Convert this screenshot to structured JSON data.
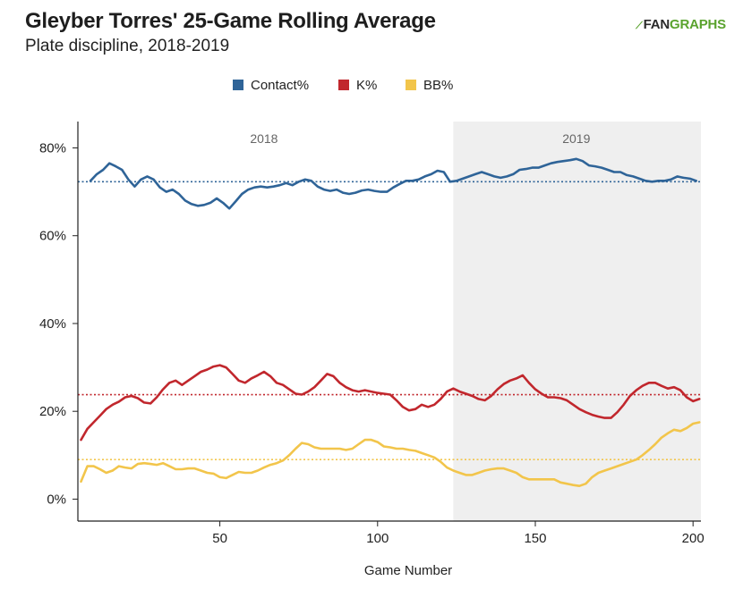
{
  "chart_data": {
    "type": "line",
    "title": "Gleyber Torres' 25-Game Rolling Average",
    "subtitle": "Plate discipline, 2018-2019",
    "logo": {
      "fan": "FAN",
      "graphs": "GRAPHS"
    },
    "xlabel": "Game Number",
    "ylabel": "",
    "xlim": [
      5,
      202.5
    ],
    "ylim": [
      -5,
      86
    ],
    "x_ticks": [
      50,
      100,
      150,
      200
    ],
    "x_tick_labels": [
      "50",
      "100",
      "150",
      "200"
    ],
    "y_ticks": [
      0,
      20,
      40,
      60,
      80
    ],
    "y_tick_labels": [
      "0%",
      "20%",
      "40%",
      "60%",
      "80%"
    ],
    "shaded_region": {
      "x_start": 124,
      "x_end": 202.5,
      "color": "#efefef"
    },
    "season_labels": [
      {
        "label": "2018",
        "x": 64
      },
      {
        "label": "2019",
        "x": 163
      }
    ],
    "legend_position": "top-center",
    "series": [
      {
        "name": "Contact%",
        "color": "#2f6498",
        "average": 72.3,
        "points": [
          [
            9,
            72.5
          ],
          [
            11,
            74
          ],
          [
            13,
            75
          ],
          [
            15,
            76.5
          ],
          [
            17,
            75.8
          ],
          [
            19,
            75
          ],
          [
            21,
            72.8
          ],
          [
            23,
            71.2
          ],
          [
            25,
            72.8
          ],
          [
            27,
            73.5
          ],
          [
            29,
            72.8
          ],
          [
            31,
            71
          ],
          [
            33,
            70
          ],
          [
            35,
            70.5
          ],
          [
            37,
            69.5
          ],
          [
            39,
            68
          ],
          [
            41,
            67.2
          ],
          [
            43,
            66.8
          ],
          [
            45,
            67
          ],
          [
            47,
            67.5
          ],
          [
            49,
            68.5
          ],
          [
            51,
            67.5
          ],
          [
            53,
            66.2
          ],
          [
            55,
            67.8
          ],
          [
            57,
            69.5
          ],
          [
            59,
            70.5
          ],
          [
            61,
            71
          ],
          [
            63,
            71.2
          ],
          [
            65,
            71
          ],
          [
            67,
            71.2
          ],
          [
            69,
            71.5
          ],
          [
            71,
            72
          ],
          [
            73,
            71.5
          ],
          [
            75,
            72.3
          ],
          [
            77,
            72.8
          ],
          [
            79,
            72.5
          ],
          [
            81,
            71.2
          ],
          [
            83,
            70.5
          ],
          [
            85,
            70.2
          ],
          [
            87,
            70.5
          ],
          [
            89,
            69.8
          ],
          [
            91,
            69.5
          ],
          [
            93,
            69.8
          ],
          [
            95,
            70.3
          ],
          [
            97,
            70.5
          ],
          [
            99,
            70.2
          ],
          [
            101,
            70
          ],
          [
            103,
            70
          ],
          [
            105,
            71
          ],
          [
            107,
            71.8
          ],
          [
            109,
            72.5
          ],
          [
            111,
            72.5
          ],
          [
            113,
            72.8
          ],
          [
            115,
            73.5
          ],
          [
            117,
            74
          ],
          [
            119,
            74.8
          ],
          [
            121,
            74.5
          ],
          [
            123,
            72.3
          ],
          [
            125,
            72.5
          ],
          [
            127,
            73
          ],
          [
            129,
            73.5
          ],
          [
            131,
            74
          ],
          [
            133,
            74.5
          ],
          [
            135,
            74
          ],
          [
            137,
            73.5
          ],
          [
            139,
            73.2
          ],
          [
            141,
            73.5
          ],
          [
            143,
            74
          ],
          [
            145,
            75
          ],
          [
            147,
            75.2
          ],
          [
            149,
            75.5
          ],
          [
            151,
            75.5
          ],
          [
            153,
            76
          ],
          [
            155,
            76.5
          ],
          [
            157,
            76.8
          ],
          [
            159,
            77
          ],
          [
            161,
            77.2
          ],
          [
            163,
            77.5
          ],
          [
            165,
            77
          ],
          [
            167,
            76
          ],
          [
            169,
            75.8
          ],
          [
            171,
            75.5
          ],
          [
            173,
            75
          ],
          [
            175,
            74.5
          ],
          [
            177,
            74.5
          ],
          [
            179,
            73.8
          ],
          [
            181,
            73.5
          ],
          [
            183,
            73
          ],
          [
            185,
            72.5
          ],
          [
            187,
            72.3
          ],
          [
            189,
            72.5
          ],
          [
            191,
            72.5
          ],
          [
            193,
            72.8
          ],
          [
            195,
            73.5
          ],
          [
            197,
            73.2
          ],
          [
            199,
            73
          ],
          [
            201,
            72.5
          ]
        ]
      },
      {
        "name": "K%",
        "color": "#c1272d",
        "average": 23.8,
        "points": [
          [
            6,
            13.5
          ],
          [
            8,
            16
          ],
          [
            10,
            17.5
          ],
          [
            12,
            19
          ],
          [
            14,
            20.5
          ],
          [
            16,
            21.5
          ],
          [
            18,
            22.2
          ],
          [
            20,
            23.2
          ],
          [
            22,
            23.5
          ],
          [
            24,
            23
          ],
          [
            26,
            22
          ],
          [
            28,
            21.8
          ],
          [
            30,
            23.2
          ],
          [
            32,
            25
          ],
          [
            34,
            26.5
          ],
          [
            36,
            27
          ],
          [
            38,
            26
          ],
          [
            40,
            27
          ],
          [
            42,
            28
          ],
          [
            44,
            29
          ],
          [
            46,
            29.5
          ],
          [
            48,
            30.2
          ],
          [
            50,
            30.5
          ],
          [
            52,
            30
          ],
          [
            54,
            28.5
          ],
          [
            56,
            27
          ],
          [
            58,
            26.5
          ],
          [
            60,
            27.5
          ],
          [
            62,
            28.2
          ],
          [
            64,
            29
          ],
          [
            66,
            28
          ],
          [
            68,
            26.5
          ],
          [
            70,
            26
          ],
          [
            72,
            25
          ],
          [
            74,
            24
          ],
          [
            76,
            23.8
          ],
          [
            78,
            24.5
          ],
          [
            80,
            25.5
          ],
          [
            82,
            27
          ],
          [
            84,
            28.5
          ],
          [
            86,
            28
          ],
          [
            88,
            26.5
          ],
          [
            90,
            25.5
          ],
          [
            92,
            24.8
          ],
          [
            94,
            24.5
          ],
          [
            96,
            24.8
          ],
          [
            98,
            24.5
          ],
          [
            100,
            24.2
          ],
          [
            102,
            24
          ],
          [
            104,
            23.8
          ],
          [
            106,
            22.5
          ],
          [
            108,
            21
          ],
          [
            110,
            20.2
          ],
          [
            112,
            20.5
          ],
          [
            114,
            21.5
          ],
          [
            116,
            21
          ],
          [
            118,
            21.5
          ],
          [
            120,
            22.8
          ],
          [
            122,
            24.5
          ],
          [
            124,
            25.2
          ],
          [
            126,
            24.5
          ],
          [
            128,
            24
          ],
          [
            130,
            23.5
          ],
          [
            132,
            22.8
          ],
          [
            134,
            22.5
          ],
          [
            136,
            23.5
          ],
          [
            138,
            25
          ],
          [
            140,
            26.2
          ],
          [
            142,
            27
          ],
          [
            144,
            27.5
          ],
          [
            146,
            28.2
          ],
          [
            148,
            26.5
          ],
          [
            150,
            25
          ],
          [
            152,
            24
          ],
          [
            154,
            23.2
          ],
          [
            156,
            23.2
          ],
          [
            158,
            23
          ],
          [
            160,
            22.5
          ],
          [
            162,
            21.5
          ],
          [
            164,
            20.5
          ],
          [
            166,
            19.8
          ],
          [
            168,
            19.2
          ],
          [
            170,
            18.8
          ],
          [
            172,
            18.5
          ],
          [
            174,
            18.5
          ],
          [
            176,
            19.8
          ],
          [
            178,
            21.5
          ],
          [
            180,
            23.5
          ],
          [
            182,
            24.8
          ],
          [
            184,
            25.8
          ],
          [
            186,
            26.5
          ],
          [
            188,
            26.5
          ],
          [
            190,
            25.8
          ],
          [
            192,
            25.2
          ],
          [
            194,
            25.5
          ],
          [
            196,
            24.8
          ],
          [
            198,
            23.2
          ],
          [
            200,
            22.3
          ],
          [
            202,
            22.8
          ]
        ]
      },
      {
        "name": "BB%",
        "color": "#f2c54b",
        "average": 9,
        "points": [
          [
            6,
            4
          ],
          [
            8,
            7.5
          ],
          [
            10,
            7.5
          ],
          [
            12,
            6.8
          ],
          [
            14,
            6
          ],
          [
            16,
            6.5
          ],
          [
            18,
            7.5
          ],
          [
            20,
            7.2
          ],
          [
            22,
            7
          ],
          [
            24,
            8
          ],
          [
            26,
            8.2
          ],
          [
            28,
            8
          ],
          [
            30,
            7.8
          ],
          [
            32,
            8.2
          ],
          [
            34,
            7.5
          ],
          [
            36,
            6.8
          ],
          [
            38,
            6.8
          ],
          [
            40,
            7
          ],
          [
            42,
            7
          ],
          [
            44,
            6.5
          ],
          [
            46,
            6
          ],
          [
            48,
            5.8
          ],
          [
            50,
            5
          ],
          [
            52,
            4.8
          ],
          [
            54,
            5.5
          ],
          [
            56,
            6.2
          ],
          [
            58,
            6
          ],
          [
            60,
            6
          ],
          [
            62,
            6.5
          ],
          [
            64,
            7.2
          ],
          [
            66,
            7.8
          ],
          [
            68,
            8.2
          ],
          [
            70,
            8.8
          ],
          [
            72,
            10
          ],
          [
            74,
            11.5
          ],
          [
            76,
            12.8
          ],
          [
            78,
            12.5
          ],
          [
            80,
            11.8
          ],
          [
            82,
            11.5
          ],
          [
            84,
            11.5
          ],
          [
            86,
            11.5
          ],
          [
            88,
            11.5
          ],
          [
            90,
            11.2
          ],
          [
            92,
            11.5
          ],
          [
            94,
            12.5
          ],
          [
            96,
            13.5
          ],
          [
            98,
            13.5
          ],
          [
            100,
            13
          ],
          [
            102,
            12
          ],
          [
            104,
            11.8
          ],
          [
            106,
            11.5
          ],
          [
            108,
            11.5
          ],
          [
            110,
            11.2
          ],
          [
            112,
            11
          ],
          [
            114,
            10.5
          ],
          [
            116,
            10
          ],
          [
            118,
            9.5
          ],
          [
            120,
            8.5
          ],
          [
            122,
            7.2
          ],
          [
            124,
            6.5
          ],
          [
            126,
            6
          ],
          [
            128,
            5.5
          ],
          [
            130,
            5.5
          ],
          [
            132,
            6
          ],
          [
            134,
            6.5
          ],
          [
            136,
            6.8
          ],
          [
            138,
            7
          ],
          [
            140,
            7
          ],
          [
            142,
            6.5
          ],
          [
            144,
            6
          ],
          [
            146,
            5
          ],
          [
            148,
            4.5
          ],
          [
            150,
            4.5
          ],
          [
            152,
            4.5
          ],
          [
            154,
            4.5
          ],
          [
            156,
            4.5
          ],
          [
            158,
            3.8
          ],
          [
            160,
            3.5
          ],
          [
            162,
            3.2
          ],
          [
            164,
            3
          ],
          [
            166,
            3.5
          ],
          [
            168,
            5
          ],
          [
            170,
            6
          ],
          [
            172,
            6.5
          ],
          [
            174,
            7
          ],
          [
            176,
            7.5
          ],
          [
            178,
            8
          ],
          [
            180,
            8.5
          ],
          [
            182,
            9
          ],
          [
            184,
            10
          ],
          [
            186,
            11.2
          ],
          [
            188,
            12.5
          ],
          [
            190,
            14
          ],
          [
            192,
            15
          ],
          [
            194,
            15.8
          ],
          [
            196,
            15.5
          ],
          [
            198,
            16.2
          ],
          [
            200,
            17.2
          ],
          [
            202,
            17.5
          ]
        ]
      }
    ]
  }
}
